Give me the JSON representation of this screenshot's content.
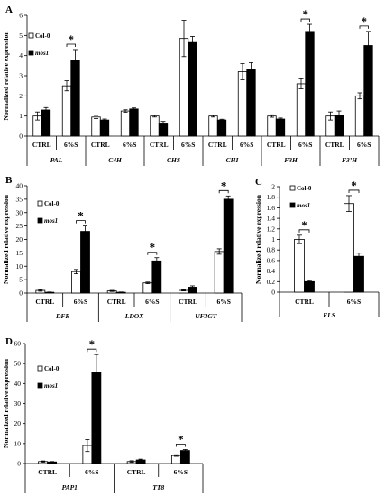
{
  "chart_data": [
    {
      "type": "bar",
      "panel": "A",
      "ylabel": "Normalized relative expression",
      "ylim": [
        0,
        6
      ],
      "yticks": [
        "0",
        "1",
        "2",
        "3",
        "4",
        "5",
        "6"
      ],
      "categories": [
        "CTRL",
        "6%S",
        "CTRL",
        "6%S",
        "CTRL",
        "6%S",
        "CTRL",
        "6%S",
        "CTRL",
        "6%S",
        "CTRL",
        "6%S"
      ],
      "groups": [
        "PAL",
        "C4H",
        "CHS",
        "CHI",
        "F3H",
        "F3’H"
      ],
      "series": [
        {
          "name": "Col-0",
          "values": [
            1.0,
            2.5,
            0.95,
            1.25,
            1.0,
            4.85,
            1.0,
            3.2,
            1.0,
            2.6,
            1.0,
            2.0
          ],
          "errors": [
            0.2,
            0.25,
            0.08,
            0.06,
            0.05,
            0.9,
            0.05,
            0.4,
            0.06,
            0.25,
            0.2,
            0.15
          ]
        },
        {
          "name": "mos1",
          "values": [
            1.3,
            3.75,
            0.8,
            1.35,
            0.65,
            4.65,
            0.8,
            3.3,
            0.85,
            5.2,
            1.05,
            4.5
          ],
          "errors": [
            0.12,
            0.55,
            0.05,
            0.05,
            0.08,
            0.3,
            0.04,
            0.35,
            0.05,
            0.35,
            0.2,
            0.7
          ]
        }
      ],
      "significant": [
        1,
        9,
        11
      ],
      "legend": [
        "Col-0",
        "mos1"
      ],
      "annotation": "*"
    },
    {
      "type": "bar",
      "panel": "B",
      "ylabel": "Normalized relative expression",
      "ylim": [
        0,
        40
      ],
      "yticks": [
        "0",
        "5",
        "10",
        "15",
        "20",
        "25",
        "30",
        "35",
        "40"
      ],
      "categories": [
        "CTRL",
        "6%S",
        "CTRL",
        "6%S",
        "CTRL",
        "6%S"
      ],
      "groups": [
        "DFR",
        "LDOX",
        "UF3GT"
      ],
      "series": [
        {
          "name": "Col-0",
          "values": [
            1.0,
            8.0,
            0.8,
            3.8,
            1.0,
            15.5
          ],
          "errors": [
            0.3,
            0.8,
            0.2,
            0.3,
            0.2,
            1.0
          ]
        },
        {
          "name": "mos1",
          "values": [
            0.3,
            23.0,
            0.3,
            12.0,
            2.2,
            35.0
          ],
          "errors": [
            0.1,
            2.0,
            0.1,
            1.2,
            0.5,
            1.2
          ]
        }
      ],
      "significant": [
        1,
        3,
        5
      ],
      "legend": [
        "Col-0",
        "mos1"
      ],
      "annotation": "*"
    },
    {
      "type": "bar",
      "panel": "C",
      "ylabel": "Normalized relative expression",
      "ylim": [
        0,
        2
      ],
      "yticks": [
        "0",
        "0.2",
        "0.4",
        "0.6",
        "0.8",
        "1",
        "1.2",
        "1.4",
        "1.6",
        "1.8",
        "2"
      ],
      "categories": [
        "CTRL",
        "6%S"
      ],
      "groups": [
        "FLS"
      ],
      "series": [
        {
          "name": "Col-0",
          "values": [
            1.0,
            1.68
          ],
          "errors": [
            0.08,
            0.15
          ]
        },
        {
          "name": "mos1",
          "values": [
            0.2,
            0.68
          ],
          "errors": [
            0.02,
            0.06
          ]
        }
      ],
      "significant": [
        0,
        1
      ],
      "legend": [
        "Col-0",
        "mos1"
      ],
      "annotation": "*"
    },
    {
      "type": "bar",
      "panel": "D",
      "ylabel": "Normalized relative expression",
      "ylim": [
        0,
        60
      ],
      "yticks": [
        "0",
        "10",
        "20",
        "30",
        "40",
        "50",
        "60"
      ],
      "categories": [
        "CTRL",
        "6%S",
        "CTRL",
        "6%S"
      ],
      "groups": [
        "PAP1",
        "TT8"
      ],
      "series": [
        {
          "name": "Col-0",
          "values": [
            1.0,
            9.0,
            1.0,
            4.0
          ],
          "errors": [
            0.3,
            3.0,
            0.4,
            0.4
          ]
        },
        {
          "name": "mos1",
          "values": [
            0.8,
            45.5,
            1.8,
            6.5
          ],
          "errors": [
            0.2,
            9.0,
            0.4,
            0.5
          ]
        }
      ],
      "significant": [
        1,
        3
      ],
      "legend": [
        "Col-0",
        "mos1"
      ],
      "annotation": "*"
    }
  ]
}
